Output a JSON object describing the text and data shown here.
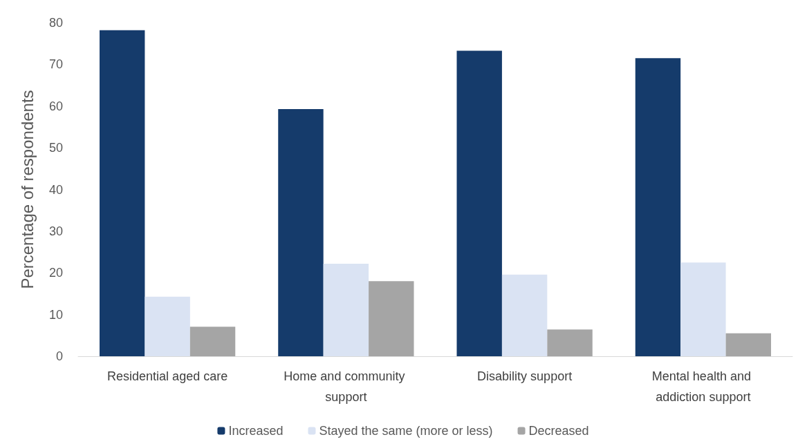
{
  "chart_data": {
    "type": "bar",
    "ylabel": "Percentage of respondents",
    "categories": [
      "Residential aged care",
      "Home and community support",
      "Disability support",
      "Mental health and addiction support"
    ],
    "series": [
      {
        "name": "Increased",
        "color": "#153b6b",
        "values": [
          78.2,
          59.3,
          73.3,
          71.5
        ]
      },
      {
        "name": "Stayed the same (more or less)",
        "color": "#dae3f3",
        "values": [
          14.3,
          22.2,
          19.6,
          22.5
        ]
      },
      {
        "name": "Decreased",
        "color": "#a5a5a5",
        "values": [
          7.1,
          18.0,
          6.4,
          5.5
        ]
      }
    ],
    "ylim": [
      0,
      80
    ],
    "yticks": [
      0,
      10,
      20,
      30,
      40,
      50,
      60,
      70,
      80
    ],
    "grid": false,
    "legend": "bottom"
  }
}
